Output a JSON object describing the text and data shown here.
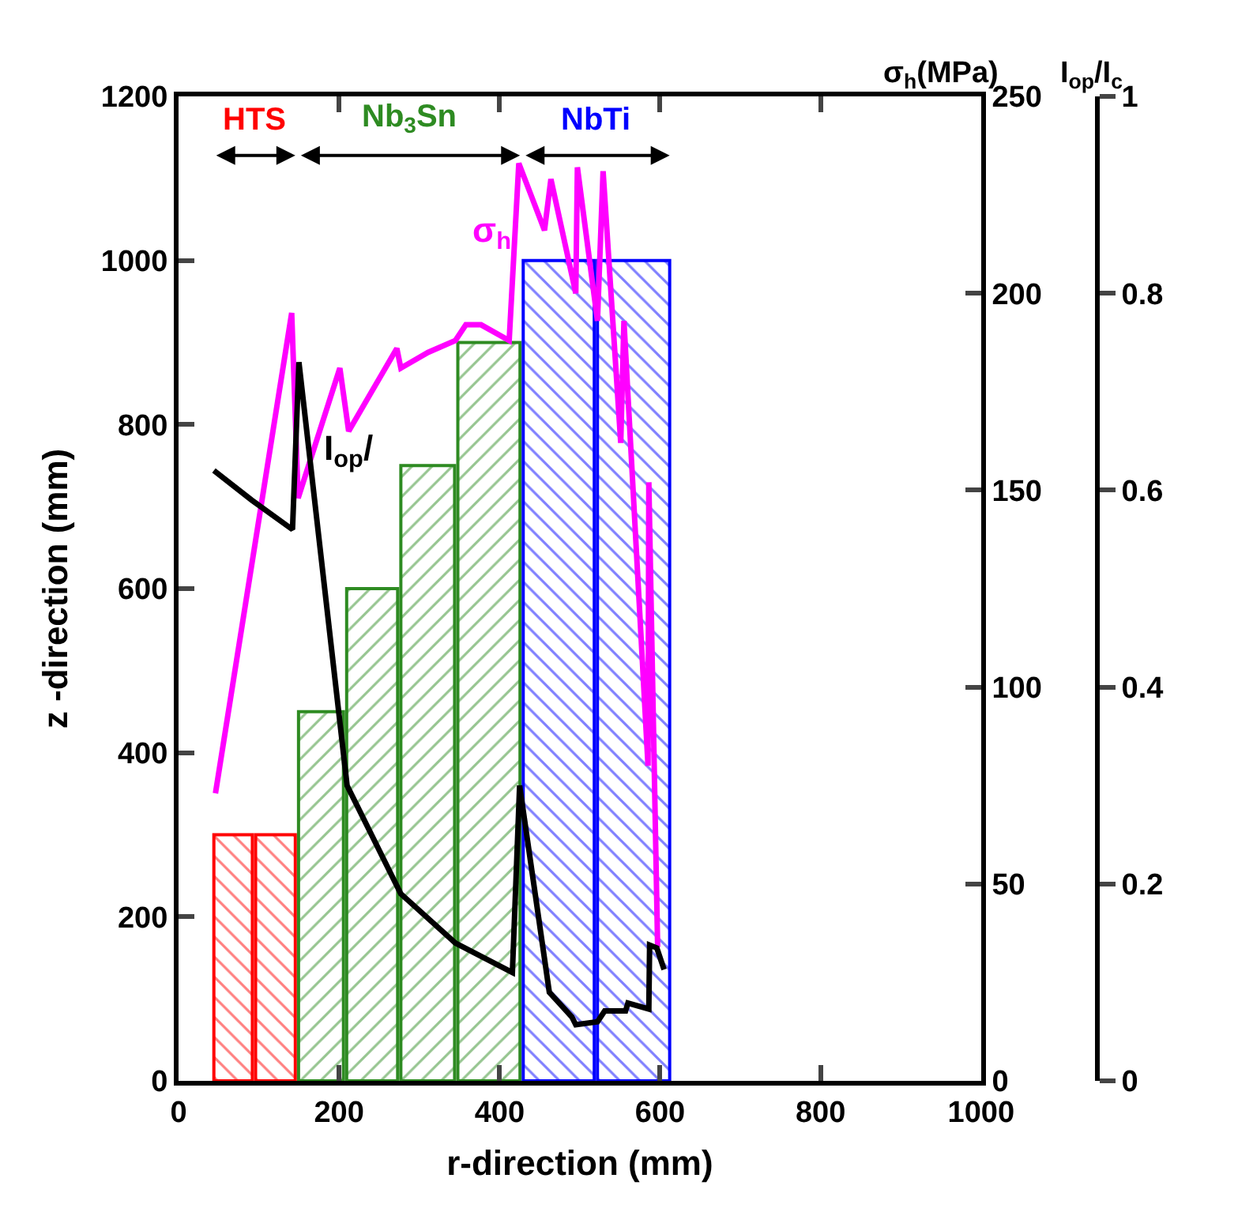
{
  "chart_data": {
    "type": "bar",
    "xlabel": "r-direction (mm)",
    "ylabel": "z -direction (mm)",
    "y2label": "σ$_{h}$(MPa)",
    "y3label": "I$_{op}$/I$_{c}$",
    "xlim": [
      0,
      1000
    ],
    "xticks": [
      0,
      200,
      400,
      600,
      800,
      1000
    ],
    "ylim": [
      0,
      1200
    ],
    "yticks": [
      0,
      200,
      400,
      600,
      800,
      1000,
      1200
    ],
    "y2lim": [
      0,
      250
    ],
    "y2ticks": [
      0,
      50,
      100,
      150,
      200,
      250
    ],
    "y3lim": [
      0,
      1
    ],
    "y3ticks": [
      0,
      0.2,
      0.4,
      0.6,
      0.8,
      1
    ],
    "legend": false,
    "series": [
      {
        "name": "HTS",
        "color": "#ff0000",
        "x": [
          68,
          120
        ],
        "values": [
          300,
          300
        ]
      },
      {
        "name": "Nb$_{3}$Sn",
        "color": "#2e8b22",
        "x": [
          175,
          240,
          310,
          382
        ],
        "values": [
          450,
          600,
          750,
          900
        ]
      },
      {
        "name": "NbTi",
        "color": "#0000ff",
        "x": [
          473,
          567
        ],
        "values": [
          1000,
          1000
        ]
      },
      {
        "type": "line",
        "axis": "y2",
        "name": "σ$_{h}$",
        "color": "#ff00ff",
        "x": [
          46,
          141,
          149,
          201,
          212,
          272,
          277,
          311,
          345,
          358,
          377,
          412,
          424,
          456,
          464,
          495,
          497,
          522,
          529,
          551,
          555,
          585,
          586,
          597
        ],
        "values": [
          73,
          195,
          148,
          181,
          165,
          186,
          181,
          185,
          188,
          192,
          192,
          188,
          233,
          216,
          229,
          200,
          232,
          193,
          231,
          162,
          193,
          80,
          152,
          34
        ]
      },
      {
        "type": "line",
        "axis": "y3",
        "name": "I$_{op}$/",
        "color": "#000000",
        "x": [
          44,
          91,
          142,
          150,
          210,
          277,
          345,
          416,
          425,
          462,
          490,
          495,
          522,
          531,
          557,
          560,
          586,
          587,
          596,
          605
        ],
        "values": [
          0.62,
          0.59,
          0.56,
          0.73,
          0.3,
          0.19,
          0.14,
          0.11,
          0.3,
          0.09,
          0.065,
          0.057,
          0.06,
          0.071,
          0.071,
          0.079,
          0.073,
          0.138,
          0.135,
          0.113
        ]
      }
    ]
  }
}
